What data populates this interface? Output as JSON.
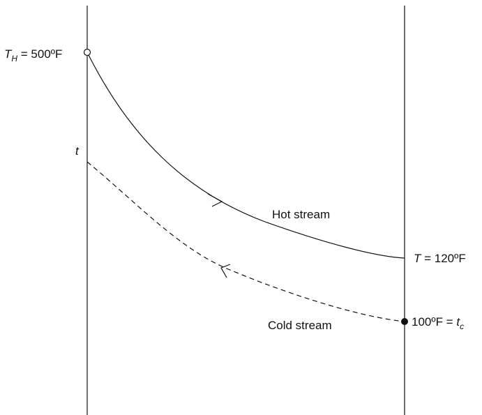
{
  "labels": {
    "hot_inlet_symbol": "T",
    "hot_inlet_subscript": "H",
    "hot_inlet_value": " = 500ºF",
    "cold_outlet_symbol": "t",
    "hot_stream": "Hot stream",
    "hot_outlet_symbol": "T",
    "hot_outlet_value": " = 120ºF",
    "cold_inlet_value": "100ºF = ",
    "cold_inlet_symbol": "t",
    "cold_inlet_subscript": "c",
    "cold_stream": "Cold stream"
  }
}
